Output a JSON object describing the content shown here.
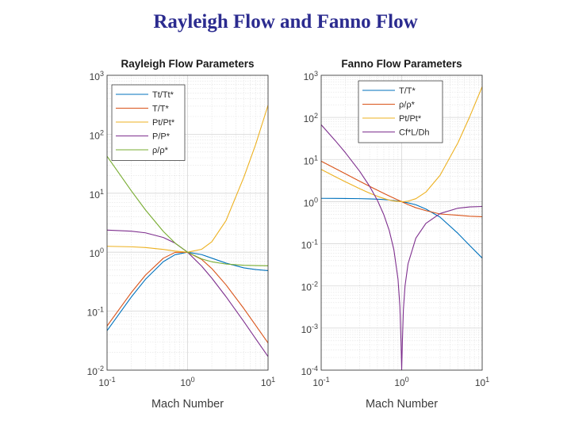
{
  "slide": {
    "title": "Rayleigh Flow and Fanno Flow"
  },
  "chart_data": [
    {
      "type": "line",
      "title": "Rayleigh Flow Parameters",
      "xlabel": "Mach Number",
      "ylabel": "",
      "xscale": "log",
      "yscale": "log",
      "xlim": [
        0.1,
        10
      ],
      "ylim": [
        0.01,
        1000
      ],
      "grid": true,
      "legend_position": "top-left",
      "x_ticks": [
        {
          "base": "10",
          "exp": "-1"
        },
        {
          "base": "10",
          "exp": "0"
        },
        {
          "base": "10",
          "exp": "1"
        }
      ],
      "y_ticks": [
        {
          "base": "10",
          "exp": "-2"
        },
        {
          "base": "10",
          "exp": "-1"
        },
        {
          "base": "10",
          "exp": "0"
        },
        {
          "base": "10",
          "exp": "1"
        },
        {
          "base": "10",
          "exp": "2"
        },
        {
          "base": "10",
          "exp": "3"
        }
      ],
      "x": [
        0.1,
        0.2,
        0.3,
        0.5,
        0.7,
        1.0,
        1.5,
        2,
        3,
        5,
        7,
        10
      ],
      "series": [
        {
          "name": "Tt/Tt*",
          "color": "#0072bd",
          "values": [
            0.0468,
            0.1736,
            0.3469,
            0.6914,
            0.9085,
            1.0,
            0.9093,
            0.7934,
            0.654,
            0.5434,
            0.5087,
            0.4872
          ]
        },
        {
          "name": "T/T*",
          "color": "#d95319",
          "values": [
            0.056,
            0.2066,
            0.4089,
            0.7901,
            0.9929,
            1.0,
            0.7525,
            0.5289,
            0.2803,
            0.1109,
            0.0578,
            0.0289
          ]
        },
        {
          "name": "Pt/Pt*",
          "color": "#edb120",
          "values": [
            1.259,
            1.235,
            1.199,
            1.114,
            1.043,
            1.0,
            1.122,
            1.503,
            3.424,
            18.63,
            66.52,
            311.1
          ]
        },
        {
          "name": "P/P*",
          "color": "#7e2f8e",
          "values": [
            2.367,
            2.273,
            2.131,
            1.778,
            1.423,
            1.0,
            0.5783,
            0.3636,
            0.1765,
            0.0666,
            0.0343,
            0.017
          ]
        },
        {
          "name": "ρ/ρ*",
          "color": "#77ac30",
          "values": [
            42.27,
            11.0,
            5.21,
            2.25,
            1.43,
            1.0,
            0.768,
            0.688,
            0.63,
            0.6,
            0.593,
            0.588
          ]
        }
      ]
    },
    {
      "type": "line",
      "title": "Fanno Flow Parameters",
      "xlabel": "Mach Number",
      "ylabel": "",
      "xscale": "log",
      "yscale": "log",
      "xlim": [
        0.1,
        10
      ],
      "ylim": [
        0.0001,
        1000
      ],
      "grid": true,
      "legend_position": "top-right",
      "x_ticks": [
        {
          "base": "10",
          "exp": "-1"
        },
        {
          "base": "10",
          "exp": "0"
        },
        {
          "base": "10",
          "exp": "1"
        }
      ],
      "y_ticks": [
        {
          "base": "10",
          "exp": "-4"
        },
        {
          "base": "10",
          "exp": "-3"
        },
        {
          "base": "10",
          "exp": "-2"
        },
        {
          "base": "10",
          "exp": "-1"
        },
        {
          "base": "10",
          "exp": "0"
        },
        {
          "base": "10",
          "exp": "1"
        },
        {
          "base": "10",
          "exp": "2"
        },
        {
          "base": "10",
          "exp": "3"
        }
      ],
      "x": [
        0.1,
        0.15,
        0.2,
        0.3,
        0.4,
        0.5,
        0.6,
        0.7,
        0.8,
        0.9,
        0.95,
        0.98,
        1.0,
        1.02,
        1.05,
        1.1,
        1.2,
        1.5,
        2,
        3,
        5,
        7,
        10
      ],
      "series": [
        {
          "name": "T/T*",
          "color": "#0072bd",
          "values": [
            1.198,
            1.195,
            1.19,
            1.179,
            1.163,
            1.143,
            1.119,
            1.093,
            1.064,
            1.033,
            1.017,
            1.007,
            1.0,
            0.9934,
            0.9836,
            0.9675,
            0.9357,
            0.8421,
            0.6667,
            0.4286,
            0.1765,
            0.0909,
            0.0458
          ]
        },
        {
          "name": "ρ/ρ*",
          "color": "#d95319",
          "values": [
            9.129,
            6.11,
            4.583,
            3.065,
            2.312,
            1.866,
            1.572,
            1.366,
            1.212,
            1.094,
            1.046,
            1.018,
            1.0,
            0.982,
            0.957,
            0.918,
            0.852,
            0.718,
            0.612,
            0.509,
            0.476,
            0.45,
            0.4385
          ]
        },
        {
          "name": "Pt/Pt*",
          "color": "#edb120",
          "values": [
            5.822,
            3.91,
            2.964,
            2.035,
            1.59,
            1.34,
            1.188,
            1.094,
            1.038,
            1.009,
            1.002,
            1.0003,
            1.0,
            1.0003,
            1.002,
            1.008,
            1.03,
            1.176,
            1.688,
            4.235,
            25.0,
            104.1,
            535.9
          ]
        },
        {
          "name": "Cf*L/Dh",
          "color": "#7e2f8e",
          "values": [
            66.92,
            27.93,
            14.53,
            5.3,
            2.31,
            1.07,
            0.49,
            0.208,
            0.0723,
            0.0145,
            0.00328,
            0.000493,
            0.0001,
            0.000454,
            0.0027,
            0.0099,
            0.0336,
            0.136,
            0.305,
            0.522,
            0.7,
            0.75,
            0.7683
          ]
        }
      ]
    }
  ]
}
